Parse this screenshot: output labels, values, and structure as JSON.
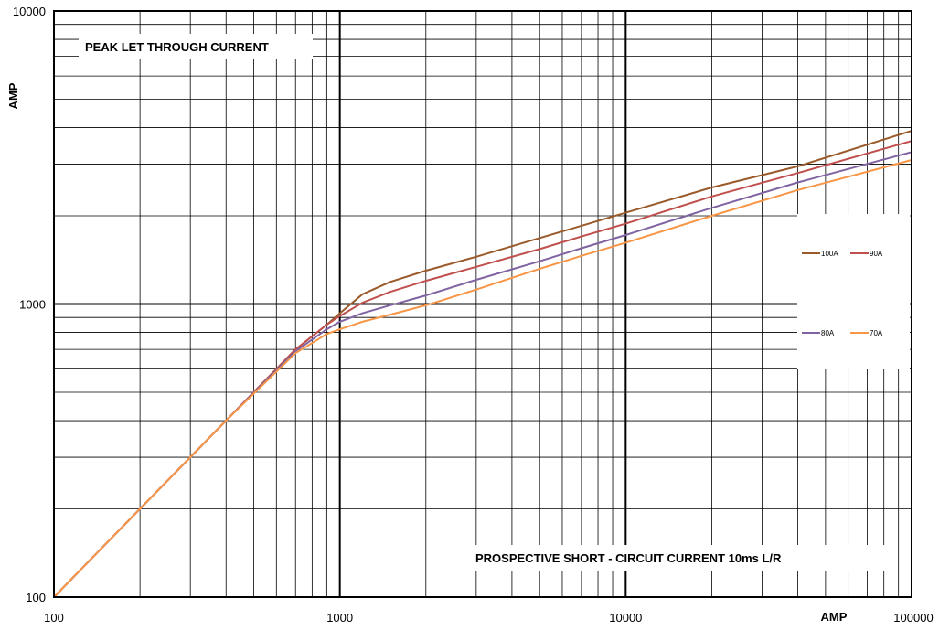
{
  "chart_data": {
    "type": "line",
    "title": "PEAK LET THROUGH CURRENT",
    "subtitle": "PROSPECTIVE SHORT - CIRCUIT CURRENT 10ms L/R",
    "xlabel": "AMP",
    "ylabel": "AMP",
    "xscale": "log",
    "yscale": "log",
    "xlim": [
      100,
      100000
    ],
    "ylim": [
      100,
      10000
    ],
    "grid": true,
    "legend_position": "right",
    "x_tick_labels": [
      "100",
      "1000",
      "10000",
      "100000"
    ],
    "y_tick_labels": [
      "100",
      "1000",
      "10000"
    ],
    "series": [
      {
        "name": "100A",
        "color": "#9a5a2a",
        "x": [
          100,
          200,
          400,
          700,
          900,
          1000,
          1200,
          1500,
          2000,
          3000,
          5000,
          7000,
          10000,
          20000,
          40000,
          100000
        ],
        "y": [
          100,
          200,
          400,
          700,
          850,
          930,
          1080,
          1190,
          1300,
          1450,
          1680,
          1850,
          2050,
          2500,
          2950,
          3900
        ]
      },
      {
        "name": "90A",
        "color": "#c0504d",
        "x": [
          100,
          200,
          400,
          700,
          900,
          1000,
          1200,
          1500,
          2000,
          3000,
          5000,
          7000,
          10000,
          20000,
          40000,
          100000
        ],
        "y": [
          100,
          200,
          400,
          700,
          850,
          910,
          1010,
          1100,
          1200,
          1340,
          1540,
          1700,
          1880,
          2330,
          2800,
          3600
        ]
      },
      {
        "name": "80A",
        "color": "#8064a2",
        "x": [
          100,
          200,
          400,
          700,
          900,
          1000,
          1200,
          1500,
          2000,
          3000,
          5000,
          7000,
          10000,
          20000,
          40000,
          100000
        ],
        "y": [
          100,
          200,
          400,
          690,
          820,
          870,
          930,
          990,
          1070,
          1210,
          1400,
          1550,
          1720,
          2130,
          2600,
          3300
        ]
      },
      {
        "name": "70A",
        "color": "#f79646",
        "x": [
          100,
          200,
          400,
          700,
          900,
          1000,
          1200,
          1500,
          2000,
          3000,
          5000,
          7000,
          10000,
          20000,
          40000,
          100000
        ],
        "y": [
          100,
          200,
          400,
          680,
          790,
          820,
          870,
          920,
          990,
          1120,
          1320,
          1460,
          1620,
          2000,
          2450,
          3100
        ]
      }
    ]
  }
}
